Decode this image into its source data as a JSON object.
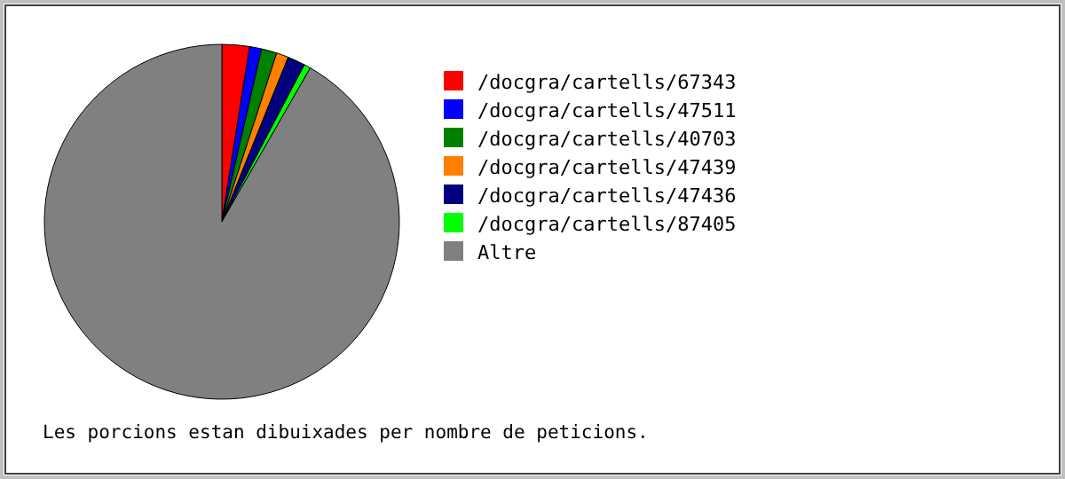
{
  "chart_data": {
    "type": "pie",
    "categories": [
      "/docgra/cartells/67343",
      "/docgra/cartells/47511",
      "/docgra/cartells/40703",
      "/docgra/cartells/47439",
      "/docgra/cartells/47436",
      "/docgra/cartells/87405",
      "Altre"
    ],
    "values": [
      2.5,
      1.1,
      1.4,
      1.1,
      1.6,
      0.6,
      91.7
    ],
    "colors": [
      "#ff0000",
      "#0000ff",
      "#008000",
      "#ff8000",
      "#000080",
      "#00ff00",
      "#808080"
    ],
    "legend": "right",
    "annotations": [
      "Les porcions estan dibuixades per nombre de peticions."
    ]
  }
}
